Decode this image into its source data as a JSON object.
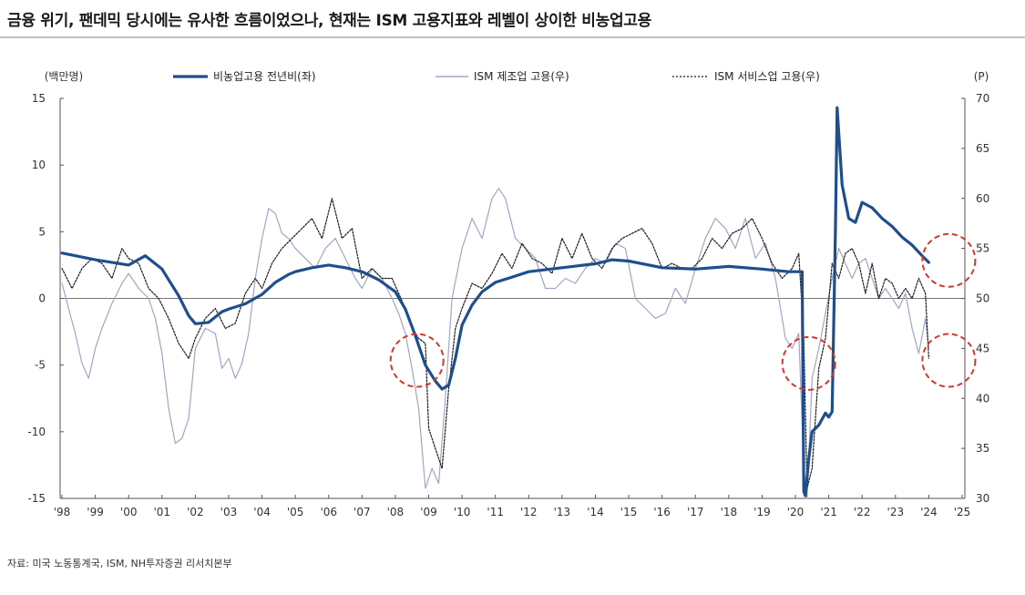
{
  "title": "금융 위기, 팬데믹 당시에는 유사한 흐름이었으나, 현재는 ISM 고용지표와 레벨이 상이한 비농업고용",
  "source": "자료: 미국 노동통계국, ISM, NH투자증권 리서치본부",
  "chart_data": {
    "type": "line",
    "left_unit": "(백만명)",
    "right_unit": "(P)",
    "left_ylim": [
      -15,
      15
    ],
    "left_ticks": [
      "15",
      "10",
      "5",
      "0",
      "-5",
      "-10",
      "-15"
    ],
    "right_ylim": [
      30,
      70
    ],
    "right_ticks": [
      "70",
      "65",
      "60",
      "55",
      "50",
      "45",
      "40",
      "35",
      "30"
    ],
    "xlim": [
      1998,
      2025
    ],
    "x_ticks": [
      "'98",
      "'99",
      "'00",
      "'01",
      "'02",
      "'03",
      "'04",
      "'05",
      "'06",
      "'07",
      "'08",
      "'09",
      "'10",
      "'11",
      "'12",
      "'13",
      "'14",
      "'15",
      "'16",
      "'17",
      "'18",
      "'19",
      "'20",
      "'21",
      "'22",
      "'23",
      "'24",
      "'25"
    ],
    "legend_position": "top",
    "zero_line": true,
    "colors": {
      "nfp": "#1f4e8c",
      "ism_mfg": "#9ea6c9",
      "ism_svc": "#1a1a1a",
      "circle": "#d9352b"
    },
    "series": [
      {
        "name": "비농업고용 전년비(좌)",
        "axis": "left",
        "style": "solid-thick",
        "x": [
          1998.0,
          1999.0,
          2000.0,
          2000.5,
          2001.0,
          2001.5,
          2001.8,
          2002.0,
          2002.4,
          2002.8,
          2003.0,
          2003.5,
          2004.0,
          2004.4,
          2004.8,
          2005.0,
          2005.5,
          2006.0,
          2006.5,
          2007.0,
          2007.5,
          2008.0,
          2008.3,
          2008.6,
          2008.9,
          2009.2,
          2009.4,
          2009.6,
          2009.8,
          2010.0,
          2010.3,
          2010.6,
          2011.0,
          2011.5,
          2012.0,
          2013.0,
          2014.0,
          2014.5,
          2015.0,
          2016.0,
          2017.0,
          2018.0,
          2019.0,
          2019.8,
          2020.2,
          2020.25,
          2020.3,
          2020.4,
          2020.5,
          2020.7,
          2020.9,
          2021.0,
          2021.1,
          2021.2,
          2021.25,
          2021.4,
          2021.6,
          2021.8,
          2022.0,
          2022.3,
          2022.6,
          2022.9,
          2023.2,
          2023.5,
          2023.8,
          2024.0
        ],
        "y": [
          3.4,
          2.9,
          2.5,
          3.2,
          2.2,
          0.2,
          -1.3,
          -1.9,
          -1.8,
          -1.0,
          -0.8,
          -0.4,
          0.3,
          1.2,
          1.8,
          2.0,
          2.3,
          2.5,
          2.3,
          2.0,
          1.4,
          0.5,
          -0.8,
          -2.8,
          -5.0,
          -6.2,
          -6.8,
          -6.5,
          -4.5,
          -2.0,
          -0.5,
          0.5,
          1.2,
          1.6,
          2.0,
          2.3,
          2.6,
          2.9,
          2.8,
          2.3,
          2.2,
          2.4,
          2.2,
          2.0,
          2.0,
          -14.5,
          -14.8,
          -12.0,
          -10.0,
          -9.5,
          -8.6,
          -8.9,
          -8.5,
          5.0,
          14.3,
          8.5,
          6.0,
          5.7,
          7.2,
          6.8,
          6.0,
          5.4,
          4.6,
          4.0,
          3.2,
          2.7
        ]
      },
      {
        "name": "ISM 제조업 고용(우)",
        "axis": "right",
        "style": "solid-thin",
        "x": [
          1998.0,
          1998.2,
          1998.4,
          1998.6,
          1998.8,
          1999.0,
          1999.2,
          1999.5,
          1999.8,
          2000.0,
          2000.3,
          2000.6,
          2000.8,
          2001.0,
          2001.2,
          2001.4,
          2001.6,
          2001.8,
          2002.0,
          2002.3,
          2002.6,
          2002.8,
          2003.0,
          2003.2,
          2003.4,
          2003.6,
          2003.8,
          2004.0,
          2004.2,
          2004.4,
          2004.6,
          2004.8,
          2005.0,
          2005.3,
          2005.6,
          2005.9,
          2006.2,
          2006.5,
          2006.8,
          2007.0,
          2007.3,
          2007.6,
          2007.9,
          2008.1,
          2008.3,
          2008.5,
          2008.7,
          2008.9,
          2009.0,
          2009.1,
          2009.3,
          2009.5,
          2009.7,
          2010.0,
          2010.3,
          2010.6,
          2010.9,
          2011.1,
          2011.3,
          2011.6,
          2011.9,
          2012.2,
          2012.5,
          2012.8,
          2013.1,
          2013.4,
          2013.7,
          2014.0,
          2014.3,
          2014.6,
          2014.9,
          2015.2,
          2015.5,
          2015.8,
          2016.1,
          2016.4,
          2016.7,
          2017.0,
          2017.3,
          2017.6,
          2017.9,
          2018.2,
          2018.5,
          2018.8,
          2019.1,
          2019.4,
          2019.7,
          2019.9,
          2020.1,
          2020.25,
          2020.35,
          2020.5,
          2020.7,
          2020.9,
          2021.1,
          2021.3,
          2021.5,
          2021.7,
          2021.9,
          2022.1,
          2022.3,
          2022.5,
          2022.7,
          2022.9,
          2023.1,
          2023.3,
          2023.5,
          2023.7,
          2023.9,
          2024.0
        ],
        "y": [
          51.5,
          49,
          46.5,
          43.5,
          42,
          45,
          47,
          49.5,
          51.5,
          52.5,
          51,
          50,
          48,
          44.5,
          39,
          35.5,
          36,
          38,
          45,
          47,
          46.5,
          43,
          44,
          42,
          43.5,
          46.5,
          52,
          56,
          59,
          58.5,
          56.5,
          56,
          55,
          54,
          53,
          55,
          56,
          54,
          52,
          51,
          53,
          52,
          50,
          48.5,
          46.5,
          43,
          39,
          31,
          32,
          33,
          31.5,
          40,
          50,
          55,
          58,
          56,
          60,
          61,
          60,
          56,
          55,
          54,
          51,
          51,
          52,
          51.5,
          53,
          54,
          53.5,
          55.5,
          55,
          50,
          49,
          48,
          48.5,
          51,
          49.5,
          53,
          56,
          58,
          57,
          55,
          58,
          54,
          55.5,
          52,
          46,
          45,
          46.5,
          33,
          30,
          42,
          45,
          48.5,
          52,
          55,
          53.5,
          52,
          53.5,
          54,
          52,
          50,
          51,
          50,
          49,
          50.5,
          47,
          44.5,
          48,
          45
        ]
      },
      {
        "name": "ISM 서비스업 고용(우)",
        "axis": "right",
        "style": "dotted",
        "x": [
          1998.0,
          1998.3,
          1998.6,
          1998.9,
          1999.2,
          1999.5,
          1999.8,
          2000.0,
          2000.3,
          2000.6,
          2000.9,
          2001.2,
          2001.5,
          2001.8,
          2002.0,
          2002.3,
          2002.6,
          2002.9,
          2003.2,
          2003.5,
          2003.8,
          2004.0,
          2004.3,
          2004.6,
          2004.9,
          2005.2,
          2005.5,
          2005.8,
          2006.1,
          2006.4,
          2006.7,
          2007.0,
          2007.3,
          2007.6,
          2007.9,
          2008.1,
          2008.3,
          2008.5,
          2008.7,
          2008.9,
          2009.0,
          2009.2,
          2009.4,
          2009.6,
          2009.8,
          2010.0,
          2010.3,
          2010.6,
          2010.9,
          2011.2,
          2011.5,
          2011.8,
          2012.1,
          2012.4,
          2012.7,
          2013.0,
          2013.3,
          2013.6,
          2013.9,
          2014.2,
          2014.5,
          2014.8,
          2015.1,
          2015.4,
          2015.7,
          2016.0,
          2016.3,
          2016.6,
          2016.9,
          2017.2,
          2017.5,
          2017.8,
          2018.1,
          2018.4,
          2018.7,
          2019.0,
          2019.3,
          2019.6,
          2019.9,
          2020.1,
          2020.25,
          2020.35,
          2020.5,
          2020.7,
          2020.9,
          2021.1,
          2021.3,
          2021.5,
          2021.7,
          2021.9,
          2022.1,
          2022.3,
          2022.5,
          2022.7,
          2022.9,
          2023.1,
          2023.3,
          2023.5,
          2023.7,
          2023.9,
          2024.0
        ],
        "y": [
          53,
          51,
          53,
          54,
          53.5,
          52,
          55,
          54,
          53.5,
          51,
          50,
          48,
          45.5,
          44,
          46,
          48,
          49,
          47,
          47.5,
          50.5,
          52,
          51,
          53.5,
          55,
          56,
          57,
          58,
          56,
          60,
          56,
          57,
          52,
          53,
          52,
          52,
          50.5,
          49,
          47,
          46,
          45.5,
          37,
          35,
          33,
          41,
          47,
          49,
          51.5,
          51,
          52.5,
          54.5,
          53,
          55.5,
          54,
          53.5,
          52.5,
          56,
          54,
          56.5,
          54,
          53,
          55,
          56,
          56.5,
          57,
          55.5,
          53,
          53.5,
          53,
          53,
          54,
          56,
          55,
          56.5,
          57,
          58,
          56,
          53.5,
          52,
          53,
          54.5,
          46,
          31,
          33,
          43,
          46,
          53.5,
          52,
          54.5,
          55,
          53.5,
          50.5,
          53.5,
          50,
          52,
          51.5,
          50,
          51,
          50,
          52,
          50.5,
          44
        ]
      }
    ],
    "highlight_circles": [
      {
        "x": 2008.65,
        "y_right": 43.8
      },
      {
        "x": 2020.4,
        "y_right": 43.5
      },
      {
        "x": 2024.6,
        "y_right": 43.8
      },
      {
        "x": 2024.6,
        "y_right": 53.8
      }
    ]
  }
}
